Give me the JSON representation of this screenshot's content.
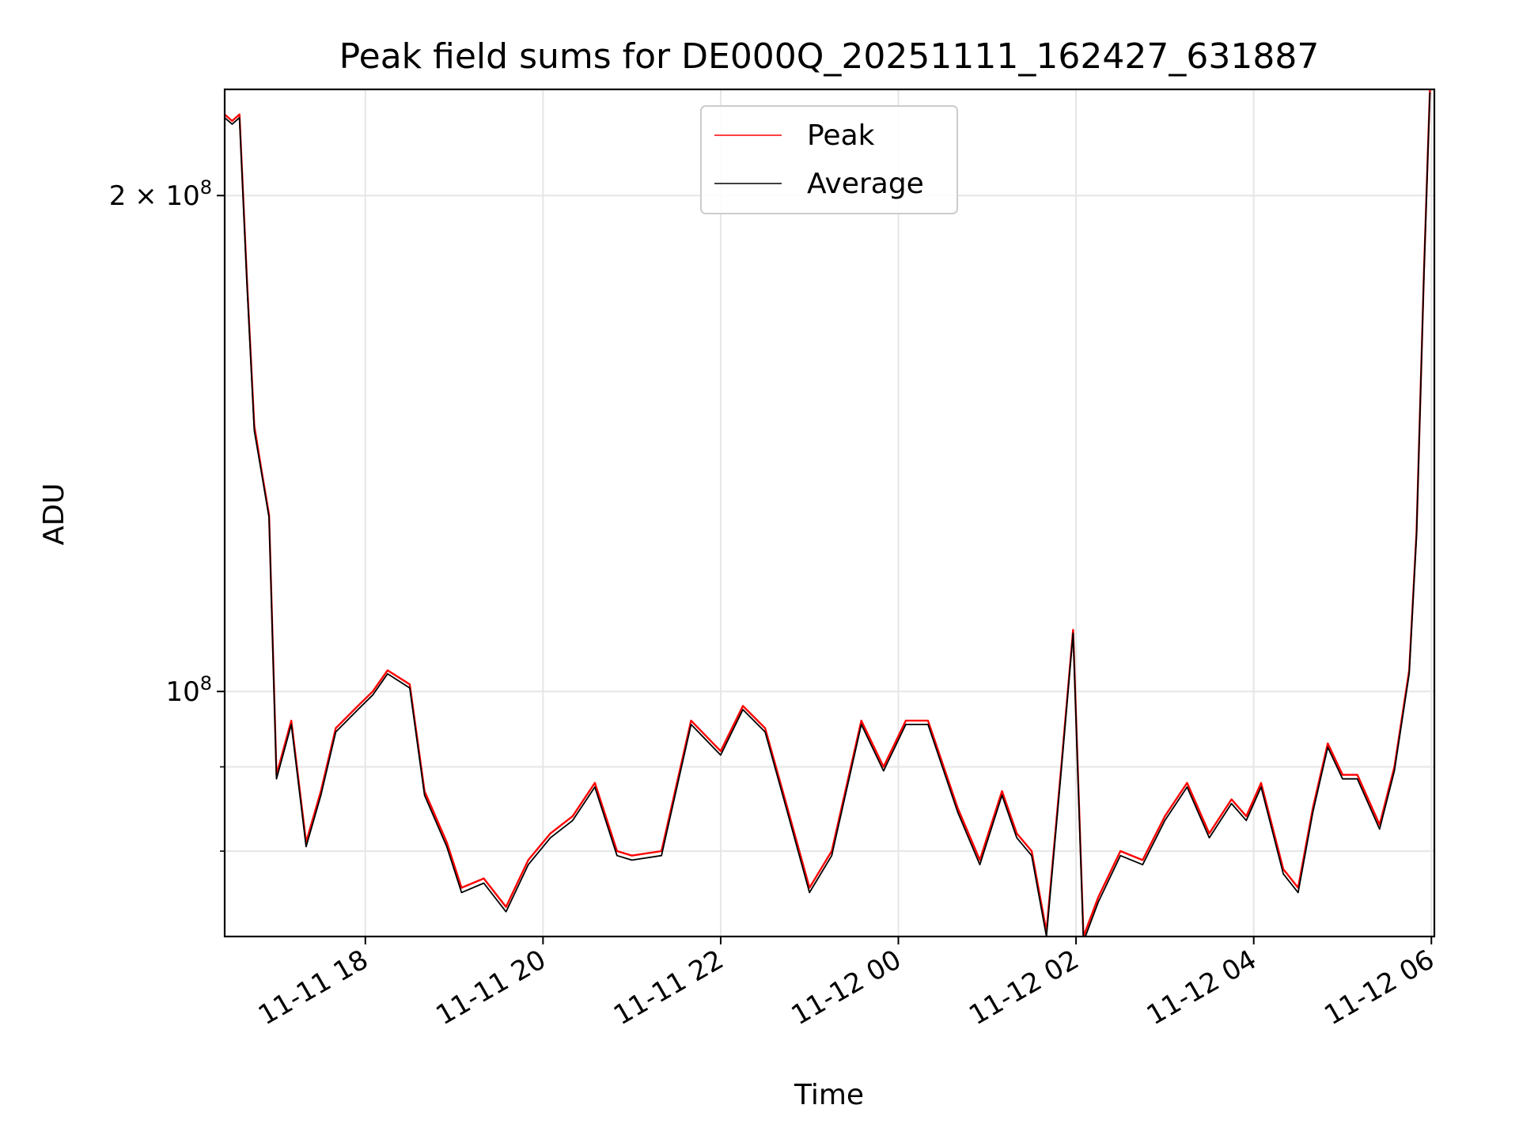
{
  "chart_data": {
    "type": "line",
    "title": "Peak field sums for DE000Q_20251111_162427_631887",
    "xlabel": "Time",
    "ylabel": "ADU",
    "yscale": "log",
    "ylim": [
      71000000,
      232000000
    ],
    "xlim": [
      "2025-11-11 16:25",
      "2025-11-12 06:02"
    ],
    "grid": true,
    "legend_loc": "upper center",
    "x_ticks": [
      "11-11 18",
      "11-11 20",
      "11-11 22",
      "11-12 00",
      "11-12 02",
      "11-12 04",
      "11-12 06"
    ],
    "y_ticks": [
      {
        "value": 200000000,
        "base": "2 × 10",
        "exp": "8"
      },
      {
        "value": 100000000,
        "base": "10",
        "exp": "8"
      }
    ],
    "minor_y_ticks": [
      80000000,
      90000000
    ],
    "x": [
      "2025-11-11 16:25",
      "2025-11-11 16:30",
      "2025-11-11 16:35",
      "2025-11-11 16:40",
      "2025-11-11 16:45",
      "2025-11-11 16:50",
      "2025-11-11 16:55",
      "2025-11-11 17:00",
      "2025-11-11 17:10",
      "2025-11-11 17:20",
      "2025-11-11 17:30",
      "2025-11-11 17:40",
      "2025-11-11 17:55",
      "2025-11-11 18:05",
      "2025-11-11 18:15",
      "2025-11-11 18:30",
      "2025-11-11 18:40",
      "2025-11-11 18:55",
      "2025-11-11 19:05",
      "2025-11-11 19:20",
      "2025-11-11 19:35",
      "2025-11-11 19:50",
      "2025-11-11 20:05",
      "2025-11-11 20:20",
      "2025-11-11 20:35",
      "2025-11-11 20:50",
      "2025-11-11 21:00",
      "2025-11-11 21:20",
      "2025-11-11 21:40",
      "2025-11-11 22:00",
      "2025-11-11 22:15",
      "2025-11-11 22:30",
      "2025-11-11 22:45",
      "2025-11-11 23:00",
      "2025-11-11 23:15",
      "2025-11-11 23:35",
      "2025-11-11 23:50",
      "2025-11-12 00:05",
      "2025-11-12 00:20",
      "2025-11-12 00:40",
      "2025-11-12 00:55",
      "2025-11-12 01:10",
      "2025-11-12 01:20",
      "2025-11-12 01:30",
      "2025-11-12 01:40",
      "2025-11-12 01:50",
      "2025-11-12 01:58",
      "2025-11-12 02:05",
      "2025-11-12 02:15",
      "2025-11-12 02:30",
      "2025-11-12 02:45",
      "2025-11-12 03:00",
      "2025-11-12 03:15",
      "2025-11-12 03:30",
      "2025-11-12 03:45",
      "2025-11-12 03:55",
      "2025-11-12 04:05",
      "2025-11-12 04:20",
      "2025-11-12 04:30",
      "2025-11-12 04:40",
      "2025-11-12 04:50",
      "2025-11-12 05:00",
      "2025-11-12 05:10",
      "2025-11-12 05:25",
      "2025-11-12 05:35",
      "2025-11-12 05:45",
      "2025-11-12 05:50",
      "2025-11-12 05:55",
      "2025-11-12 05:59"
    ],
    "series": [
      {
        "name": "Peak",
        "color": "#ff0000",
        "values": [
          224000000,
          222000000,
          224000000,
          178000000,
          145000000,
          136000000,
          128000000,
          89000000,
          96000000,
          81000000,
          87000000,
          95000000,
          98000000,
          100000000,
          103000000,
          101000000,
          87000000,
          81000000,
          76000000,
          77000000,
          74000000,
          79000000,
          82000000,
          84000000,
          88000000,
          80000000,
          79500000,
          80000000,
          96000000,
          92000000,
          98000000,
          95000000,
          85000000,
          76000000,
          80000000,
          96000000,
          90000000,
          96000000,
          96000000,
          85000000,
          79000000,
          87000000,
          82000000,
          80000000,
          71500000,
          90000000,
          109000000,
          71000000,
          75000000,
          80000000,
          79000000,
          84000000,
          88000000,
          82000000,
          86000000,
          84000000,
          88000000,
          78000000,
          76000000,
          85000000,
          93000000,
          89000000,
          89000000,
          83000000,
          90000000,
          103000000,
          125000000,
          180000000,
          232000000
        ]
      },
      {
        "name": "Average",
        "color": "#000000",
        "values": [
          223000000,
          221000000,
          223000000,
          177000000,
          144000000,
          135500000,
          127500000,
          88500000,
          95500000,
          80500000,
          86500000,
          94500000,
          97500000,
          99500000,
          102500000,
          100500000,
          86500000,
          80500000,
          75500000,
          76500000,
          73500000,
          78500000,
          81500000,
          83500000,
          87500000,
          79500000,
          79000000,
          79500000,
          95500000,
          91500000,
          97500000,
          94500000,
          84500000,
          75500000,
          79500000,
          95500000,
          89500000,
          95500000,
          95500000,
          84500000,
          78500000,
          86500000,
          81500000,
          79500000,
          71000000,
          89500000,
          108500000,
          70500000,
          74500000,
          79500000,
          78500000,
          83500000,
          87500000,
          81500000,
          85500000,
          83500000,
          87500000,
          77500000,
          75500000,
          84500000,
          92500000,
          88500000,
          88500000,
          82500000,
          89500000,
          102500000,
          124500000,
          179500000,
          231000000
        ]
      }
    ]
  }
}
